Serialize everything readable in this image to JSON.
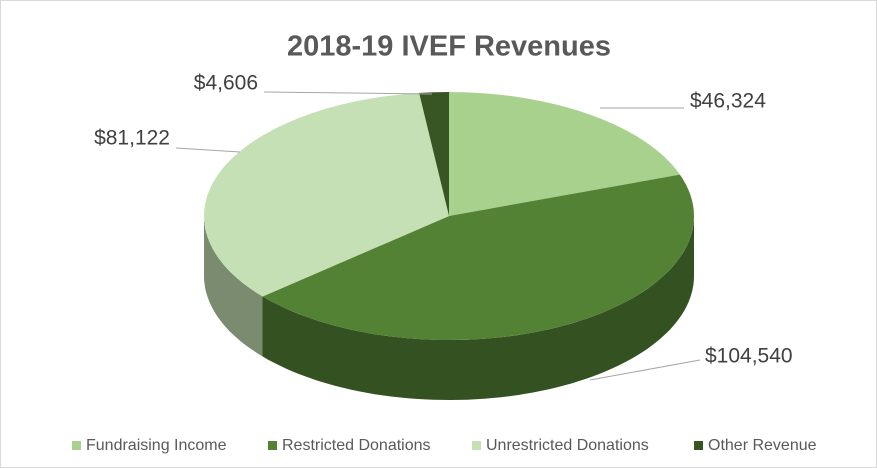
{
  "chart_data": {
    "type": "pie3d",
    "title": "2018-19 IVEF Revenues",
    "categories": [
      "Fundraising Income",
      "Restricted Donations",
      "Unrestricted Donations",
      "Other Revenue"
    ],
    "values": [
      46324,
      104540,
      81122,
      4606
    ],
    "value_labels": [
      "$46,324",
      "$104,540",
      "$81,122",
      "$4,606"
    ],
    "colors": [
      "#a9d18e",
      "#548235",
      "#c5e0b4",
      "#375623"
    ],
    "legend": "bottom"
  }
}
